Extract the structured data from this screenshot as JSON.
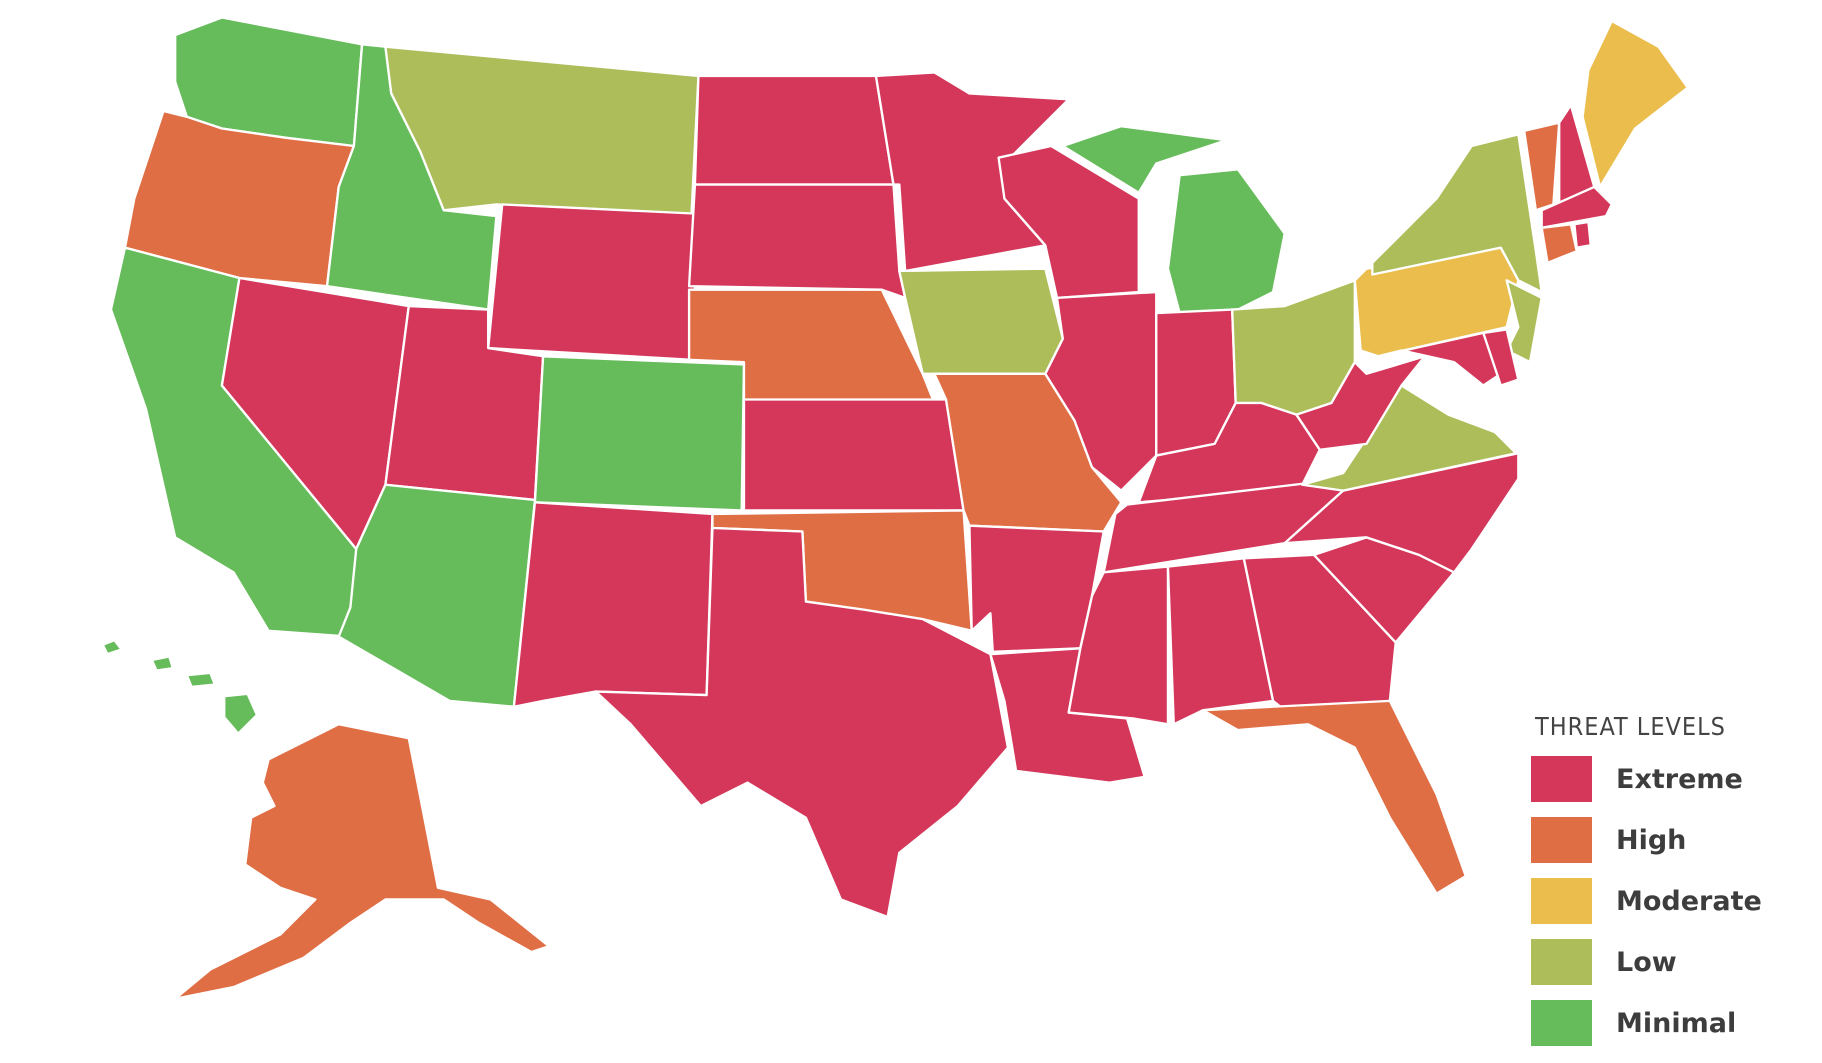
{
  "legend": {
    "title": "THREAT LEVELS",
    "items": [
      {
        "key": "extreme",
        "label": "Extreme",
        "color": "#d4375a"
      },
      {
        "key": "high",
        "label": "High",
        "color": "#e06e45"
      },
      {
        "key": "moderate",
        "label": "Moderate",
        "color": "#ebbd4c"
      },
      {
        "key": "low",
        "label": "Low",
        "color": "#adbd5a"
      },
      {
        "key": "minimal",
        "label": "Minimal",
        "color": "#66bb5a"
      }
    ]
  },
  "states": {
    "WA": "minimal",
    "OR": "high",
    "CA": "minimal",
    "NV": "extreme",
    "ID": "minimal",
    "MT": "low",
    "WY": "extreme",
    "UT": "extreme",
    "CO": "minimal",
    "AZ": "minimal",
    "NM": "extreme",
    "ND": "extreme",
    "SD": "extreme",
    "NE": "high",
    "KS": "extreme",
    "OK": "high",
    "TX": "extreme",
    "MN": "extreme",
    "IA": "low",
    "MO": "high",
    "AR": "extreme",
    "LA": "extreme",
    "WI": "extreme",
    "IL": "extreme",
    "MI": "minimal",
    "IN": "extreme",
    "OH": "low",
    "KY": "extreme",
    "TN": "extreme",
    "MS": "extreme",
    "AL": "extreme",
    "GA": "extreme",
    "FL": "high",
    "SC": "extreme",
    "NC": "extreme",
    "VA": "low",
    "WV": "extreme",
    "PA": "moderate",
    "NY": "low",
    "NJ": "low",
    "MD": "extreme",
    "DE": "extreme",
    "VT": "high",
    "NH": "extreme",
    "ME": "moderate",
    "MA": "extreme",
    "CT": "high",
    "RI": "extreme",
    "AK": "high",
    "HI": "minimal"
  }
}
